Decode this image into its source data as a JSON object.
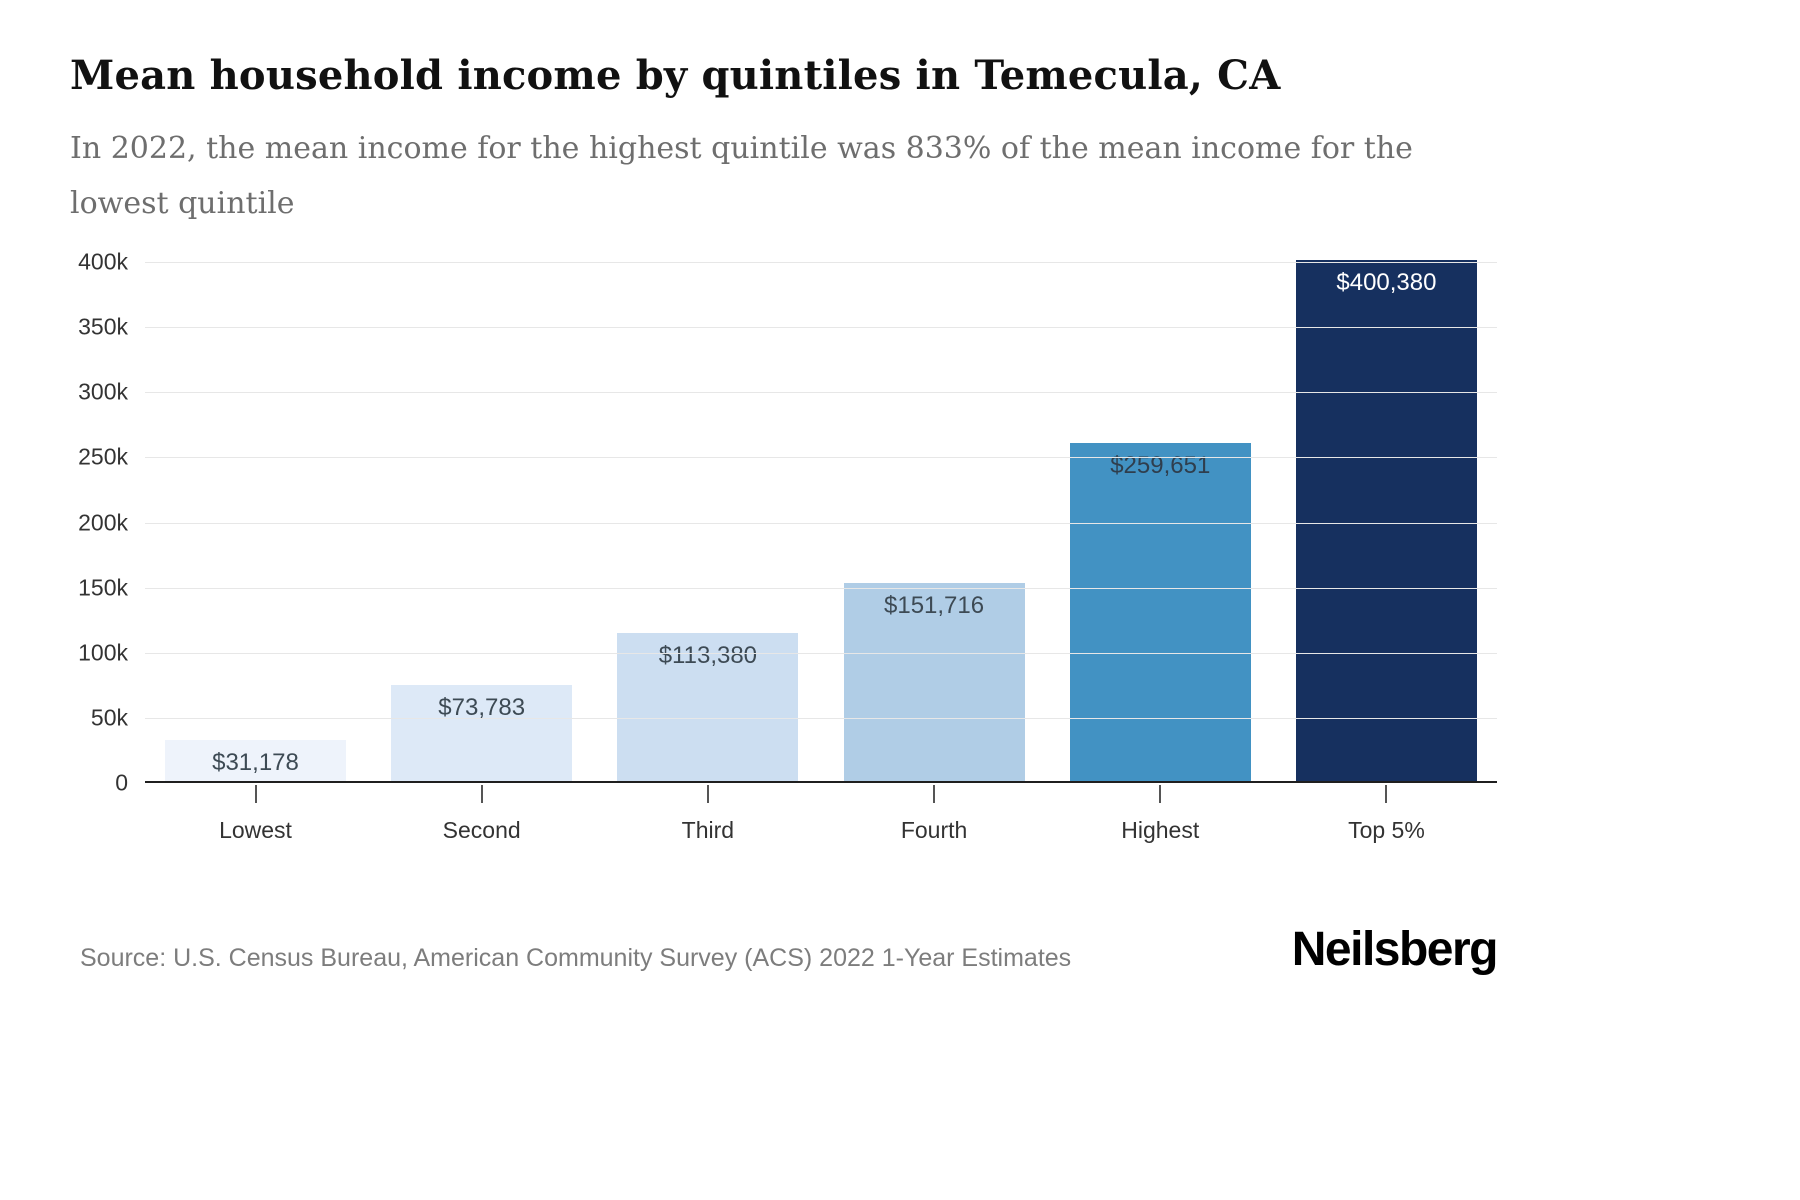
{
  "header": {
    "title": "Mean household income by quintiles in Temecula, CA",
    "subtitle": "In 2022, the mean income for the highest quintile was 833% of the mean income for the lowest quintile"
  },
  "chart_data": {
    "type": "bar",
    "title": "Mean household income by quintiles in Temecula, CA",
    "categories": [
      "Lowest",
      "Second",
      "Third",
      "Fourth",
      "Highest",
      "Top 5%"
    ],
    "values": [
      31178,
      73783,
      113380,
      151716,
      259651,
      400380
    ],
    "value_labels": [
      "$31,178",
      "$73,783",
      "$113,380",
      "$151,716",
      "$259,651",
      "$400,380"
    ],
    "bar_colors": [
      "#eef3fb",
      "#dde9f7",
      "#ccdef1",
      "#b0cde6",
      "#4292c3",
      "#16305f"
    ],
    "label_colors": [
      "#3d4a54",
      "#3d4a54",
      "#3d4a54",
      "#3d4a54",
      "#2f3e4d",
      "#ffffff"
    ],
    "xlabel": "",
    "ylabel": "",
    "ylim": [
      0,
      400000
    ],
    "yticks": [
      0,
      50000,
      100000,
      150000,
      200000,
      250000,
      300000,
      350000,
      400000
    ],
    "ytick_labels": [
      "0",
      "50k",
      "100k",
      "150k",
      "200k",
      "250k",
      "300k",
      "350k",
      "400k"
    ],
    "grid": "horizontal",
    "legend": "none"
  },
  "footer": {
    "source": "Source: U.S. Census Bureau, American Community Survey (ACS) 2022 1-Year Estimates",
    "brand": "Neilsberg"
  }
}
